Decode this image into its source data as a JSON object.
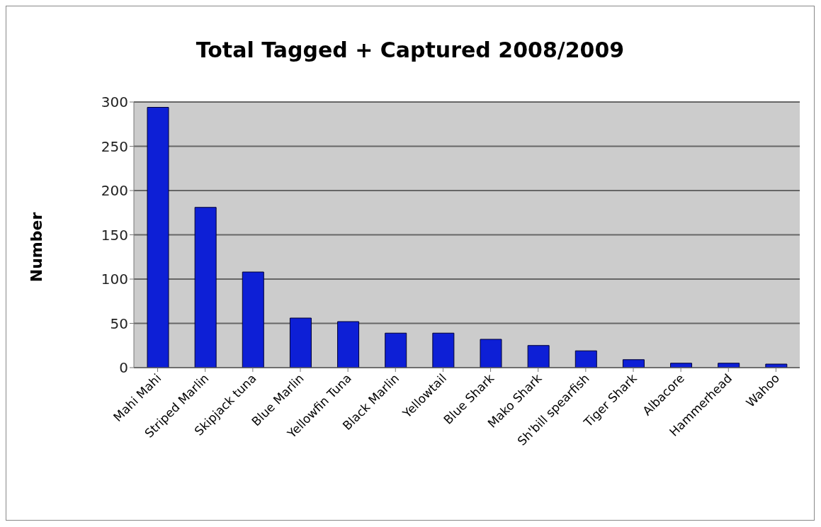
{
  "chart_data": {
    "type": "bar",
    "title": "Total Tagged + Captured 2008/2009",
    "ylabel": "Number",
    "categories": [
      "Mahi Mahi",
      "Striped Marlin",
      "Skipjack tuna",
      "Blue Marlin",
      "Yellowfin Tuna",
      "Black Marlin",
      "Yellowtail",
      "Blue Shark",
      "Mako Shark",
      "Sh'bill spearfish",
      "Tiger Shark",
      "Albacore",
      "Hammerhead",
      "Wahoo"
    ],
    "values": [
      294,
      181,
      108,
      56,
      52,
      39,
      39,
      32,
      25,
      19,
      9,
      5,
      5,
      4
    ],
    "color": "#0d1fd6",
    "ylim": [
      0,
      300
    ],
    "yticks": [
      0,
      50,
      100,
      150,
      200,
      250,
      300
    ],
    "grid": "y"
  }
}
